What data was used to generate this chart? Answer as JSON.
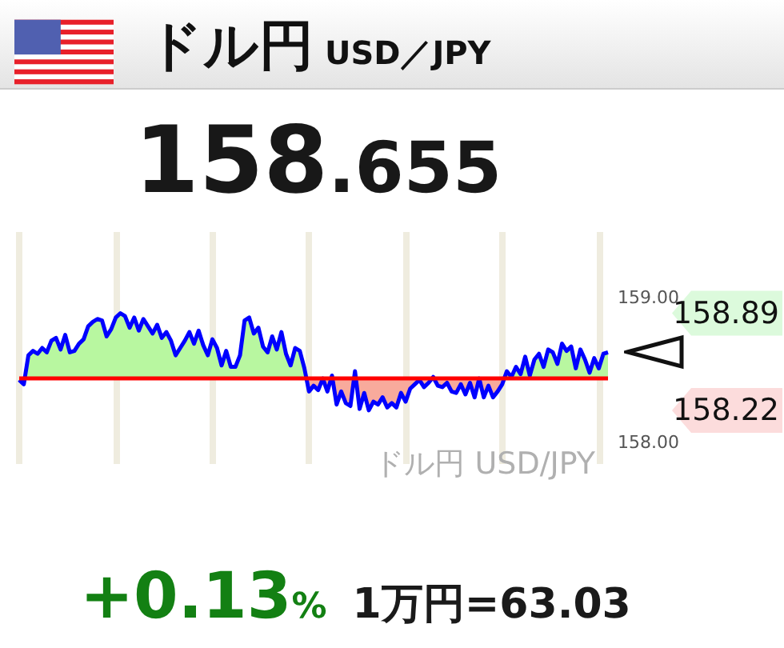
{
  "chart_data": {
    "type": "line",
    "title": "ドル円 USD／JPY",
    "subtitle": "158.655",
    "categories": [
      null,
      null,
      null,
      null,
      null,
      null,
      null,
      null,
      null,
      null,
      null,
      null,
      null,
      null,
      null,
      null,
      null,
      null,
      null,
      null,
      null,
      null,
      null,
      null,
      null,
      null,
      null,
      null,
      null,
      null,
      null,
      null,
      null,
      null,
      null,
      null,
      null,
      null,
      null,
      null,
      null,
      null,
      null,
      null,
      null,
      null,
      null,
      null,
      null,
      null,
      null,
      null,
      null,
      null,
      null,
      null,
      null,
      null,
      null,
      null,
      null,
      null,
      null,
      null,
      null,
      null,
      null,
      null,
      null,
      null,
      null,
      null,
      null,
      null,
      null,
      null,
      null,
      null,
      null,
      null,
      null,
      null,
      null,
      null,
      null,
      null,
      null,
      null,
      null,
      null,
      null,
      null,
      null,
      null,
      null,
      null,
      null,
      null,
      null,
      null,
      null,
      null,
      null,
      null,
      null,
      null,
      null,
      null,
      null,
      null,
      null,
      null,
      null,
      null,
      null,
      null,
      null,
      null,
      null,
      null,
      null,
      null,
      null,
      null,
      null,
      null,
      null,
      null,
      null
    ],
    "series": [
      {
        "color": "#0000ff",
        "values": [
          158.43,
          158.4,
          158.6,
          158.63,
          158.61,
          158.65,
          158.62,
          158.7,
          158.72,
          158.64,
          158.74,
          158.62,
          158.63,
          158.68,
          158.71,
          158.8,
          158.83,
          158.85,
          158.84,
          158.73,
          158.78,
          158.86,
          158.89,
          158.87,
          158.79,
          158.86,
          158.77,
          158.85,
          158.8,
          158.75,
          158.81,
          158.72,
          158.76,
          158.7,
          158.6,
          158.65,
          158.7,
          158.76,
          158.68,
          158.77,
          158.67,
          158.6,
          158.71,
          158.65,
          158.53,
          158.63,
          158.52,
          158.52,
          158.6,
          158.84,
          158.86,
          158.75,
          158.79,
          158.66,
          158.62,
          158.73,
          158.64,
          158.76,
          158.61,
          158.53,
          158.65,
          158.63,
          158.51,
          158.35,
          158.39,
          158.36,
          158.44,
          158.35,
          158.46,
          158.26,
          158.35,
          158.27,
          158.25,
          158.49,
          158.23,
          158.34,
          158.22,
          158.28,
          158.26,
          158.31,
          158.24,
          158.27,
          158.24,
          158.34,
          158.28,
          158.37,
          158.4,
          158.43,
          158.38,
          158.41,
          158.45,
          158.39,
          158.38,
          158.41,
          158.35,
          158.34,
          158.4,
          158.33,
          158.41,
          158.31,
          158.44,
          158.31,
          158.39,
          158.31,
          158.35,
          158.4,
          158.49,
          158.45,
          158.52,
          158.47,
          158.59,
          158.46,
          158.57,
          158.61,
          158.52,
          158.64,
          158.62,
          158.54,
          158.68,
          158.63,
          158.66,
          158.51,
          158.64,
          158.57,
          158.48,
          158.58,
          158.51,
          158.61,
          158.62
        ]
      }
    ],
    "ylim": [
      157.85,
      159.45
    ],
    "yticks": [
      {
        "value": 158,
        "label": "158.00"
      },
      {
        "value": 159,
        "label": "159.00"
      }
    ],
    "tick_labels": "y",
    "grid": "x",
    "ref_lines": [
      {
        "axis": "y",
        "value": 158.44,
        "color": "#ff0000"
      }
    ],
    "annotations": [
      "158.89",
      "158.22",
      "ドル円 USD/JPY",
      "+0.13%",
      "1万円=63.03"
    ]
  }
}
